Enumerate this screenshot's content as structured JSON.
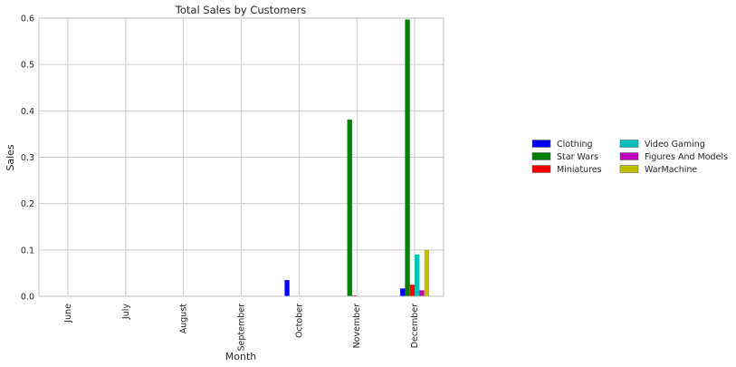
{
  "chart_data": {
    "type": "bar",
    "title": "Total Sales by Customers",
    "xlabel": "Month",
    "ylabel": "Sales",
    "ylim": [
      0,
      0.6
    ],
    "yticks": [
      "0.0",
      "0.1",
      "0.2",
      "0.3",
      "0.4",
      "0.5",
      "0.6"
    ],
    "grid": true,
    "legend_position": "right",
    "categories": [
      "June",
      "July",
      "August",
      "September",
      "October",
      "November",
      "December"
    ],
    "series": [
      {
        "name": "Clothing",
        "color": "#0000ff",
        "values": [
          0,
          0,
          0,
          0,
          0.035,
          0,
          0.017
        ]
      },
      {
        "name": "Star Wars",
        "color": "#008000",
        "values": [
          0,
          0,
          0,
          0,
          0,
          0.381,
          0.597
        ]
      },
      {
        "name": "Miniatures",
        "color": "#ff0000",
        "values": [
          0,
          0,
          0,
          0,
          0,
          0.002,
          0.025
        ]
      },
      {
        "name": "Video Gaming",
        "color": "#00bfbf",
        "values": [
          0,
          0,
          0,
          0,
          0,
          0,
          0.09
        ]
      },
      {
        "name": "Figures And Models",
        "color": "#bf00bf",
        "values": [
          0,
          0,
          0,
          0,
          0,
          0,
          0.013
        ]
      },
      {
        "name": "WarMachine",
        "color": "#bfbf00",
        "values": [
          0,
          0,
          0,
          0,
          0,
          0,
          0.1
        ]
      }
    ]
  }
}
